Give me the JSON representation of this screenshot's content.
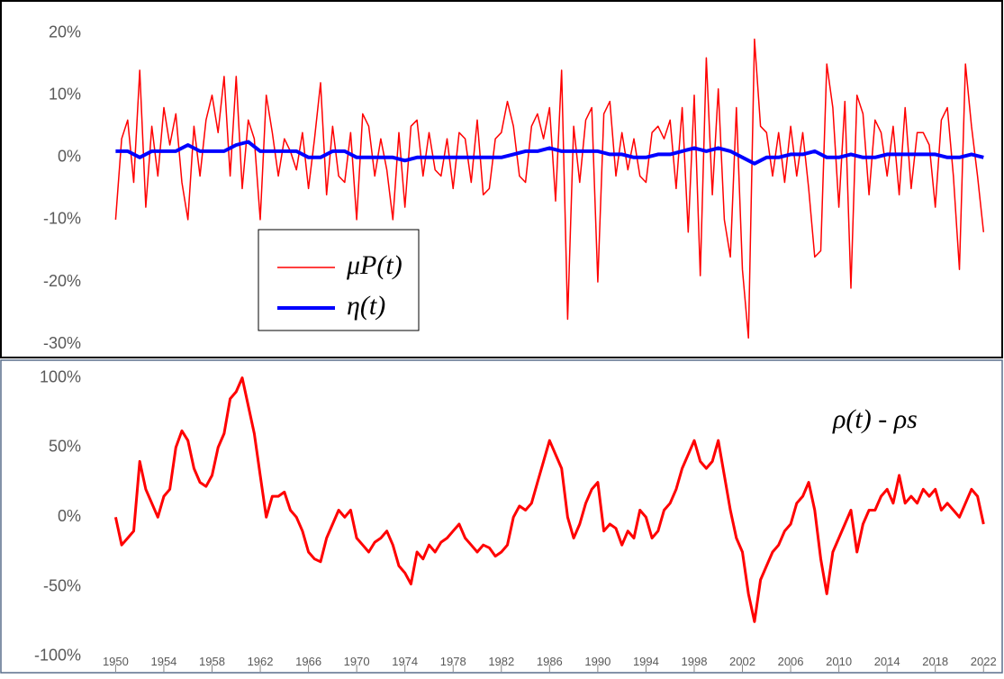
{
  "chart_data": [
    {
      "type": "line",
      "xlim": [
        1948.7,
        2023.4
      ],
      "ylim": [
        -32,
        25
      ],
      "yticks": [
        {
          "value": -30,
          "label": "-30%"
        },
        {
          "value": -20,
          "label": "-20%"
        },
        {
          "value": -10,
          "label": "-10%"
        },
        {
          "value": 0,
          "label": "0%"
        },
        {
          "value": 10,
          "label": "10%"
        },
        {
          "value": 20,
          "label": "20%"
        }
      ],
      "legend": "lower left",
      "series": [
        {
          "name": "μP(t)",
          "color": "#ff0000",
          "x": [
            1950,
            1950.5,
            1951,
            1951.5,
            1952,
            1952.5,
            1953,
            1953.5,
            1954,
            1954.5,
            1955,
            1955.5,
            1956,
            1956.5,
            1957,
            1957.5,
            1958,
            1958.5,
            1959,
            1959.5,
            1960,
            1960.5,
            1961,
            1961.5,
            1962,
            1962.5,
            1963,
            1963.5,
            1964,
            1964.5,
            1965,
            1965.5,
            1966,
            1966.5,
            1967,
            1967.5,
            1968,
            1968.5,
            1969,
            1969.5,
            1970,
            1970.5,
            1971,
            1971.5,
            1972,
            1972.5,
            1973,
            1973.5,
            1974,
            1974.5,
            1975,
            1975.5,
            1976,
            1976.5,
            1977,
            1977.5,
            1978,
            1978.5,
            1979,
            1979.5,
            1980,
            1980.5,
            1981,
            1981.5,
            1982,
            1982.5,
            1983,
            1983.5,
            1984,
            1984.5,
            1985,
            1985.5,
            1986,
            1986.5,
            1987,
            1987.5,
            1988,
            1988.5,
            1989,
            1989.5,
            1990,
            1990.5,
            1991,
            1991.5,
            1992,
            1992.5,
            1993,
            1993.5,
            1994,
            1994.5,
            1995,
            1995.5,
            1996,
            1996.5,
            1997,
            1997.5,
            1998,
            1998.5,
            1999,
            1999.5,
            2000,
            2000.5,
            2001,
            2001.5,
            2002,
            2002.5,
            2003,
            2003.5,
            2004,
            2004.5,
            2005,
            2005.5,
            2006,
            2006.5,
            2007,
            2007.5,
            2008,
            2008.5,
            2009,
            2009.5,
            2010,
            2010.5,
            2011,
            2011.5,
            2012,
            2012.5,
            2013,
            2013.5,
            2014,
            2014.5,
            2015,
            2015.5,
            2016,
            2016.5,
            2017,
            2017.5,
            2018,
            2018.5,
            2019,
            2019.5,
            2020,
            2020.5,
            2021,
            2021.5,
            2022
          ],
          "values": [
            -10,
            3,
            6,
            -4,
            14,
            -8,
            5,
            -3,
            8,
            2,
            7,
            -4,
            -10,
            5,
            -3,
            6,
            10,
            4,
            13,
            -3,
            13,
            -5,
            6,
            3,
            -10,
            10,
            4,
            -3,
            3,
            1,
            -2,
            4,
            -5,
            3,
            12,
            -6,
            5,
            -3,
            -4,
            4,
            -10,
            7,
            5,
            -3,
            3,
            -2,
            -10,
            4,
            -8,
            5,
            6,
            -3,
            4,
            -2,
            -3,
            3,
            -5,
            4,
            3,
            -4,
            6,
            -6,
            -5,
            3,
            4,
            9,
            5,
            -3,
            -4,
            5,
            7,
            3,
            8,
            -7,
            14,
            -26,
            5,
            -4,
            6,
            8,
            -20,
            7,
            9,
            -3,
            4,
            -2,
            3,
            -3,
            -4,
            4,
            5,
            3,
            6,
            -5,
            8,
            -12,
            10,
            -19,
            16,
            -6,
            11,
            -10,
            -16,
            8,
            -18,
            -29,
            19,
            5,
            4,
            -3,
            4,
            -4,
            5,
            -3,
            4,
            -5,
            -16,
            -15,
            15,
            8,
            -8,
            9,
            -21,
            10,
            7,
            -6,
            6,
            4,
            -3,
            5,
            -6,
            8,
            -5,
            4,
            4,
            2,
            -8,
            6,
            8,
            -3,
            -18,
            15,
            5,
            -3,
            -12
          ]
        },
        {
          "name": "η(t)",
          "color": "#0000ff",
          "x": [
            1950,
            1951,
            1952,
            1953,
            1954,
            1955,
            1956,
            1957,
            1958,
            1959,
            1960,
            1961,
            1962,
            1963,
            1964,
            1965,
            1966,
            1967,
            1968,
            1969,
            1970,
            1971,
            1972,
            1973,
            1974,
            1975,
            1976,
            1977,
            1978,
            1979,
            1980,
            1981,
            1982,
            1983,
            1984,
            1985,
            1986,
            1987,
            1988,
            1989,
            1990,
            1991,
            1992,
            1993,
            1994,
            1995,
            1996,
            1997,
            1998,
            1999,
            2000,
            2001,
            2002,
            2003,
            2004,
            2005,
            2006,
            2007,
            2008,
            2009,
            2010,
            2011,
            2012,
            2013,
            2014,
            2015,
            2016,
            2017,
            2018,
            2019,
            2020,
            2021,
            2022
          ],
          "values": [
            1,
            1,
            0,
            1,
            1,
            1,
            2,
            1,
            1,
            1,
            2,
            2.5,
            1,
            1,
            1,
            1,
            0,
            0,
            1,
            1,
            0,
            0,
            0,
            0,
            -0.5,
            0,
            0,
            0,
            0,
            0,
            0,
            0,
            0,
            0.5,
            1,
            1,
            1.5,
            1,
            1,
            1,
            1,
            0.5,
            0.5,
            0,
            0,
            0.5,
            0.5,
            1,
            1.5,
            1,
            1.5,
            1,
            0,
            -1,
            0,
            0,
            0.5,
            0.5,
            1,
            0,
            0,
            0.5,
            0,
            0,
            0.5,
            0.5,
            0.5,
            0.5,
            0.5,
            0,
            0,
            0.5,
            0
          ]
        }
      ]
    },
    {
      "type": "line",
      "xlim": [
        1948.7,
        2023.4
      ],
      "ylim": [
        -111,
        112
      ],
      "xticks": [
        1950,
        1954,
        1958,
        1962,
        1966,
        1970,
        1974,
        1978,
        1982,
        1986,
        1990,
        1994,
        1998,
        2002,
        2006,
        2010,
        2014,
        2018,
        2022
      ],
      "yticks": [
        {
          "value": -100,
          "label": "-100%"
        },
        {
          "value": -50,
          "label": "-50%"
        },
        {
          "value": 0,
          "label": "0%"
        },
        {
          "value": 50,
          "label": "50%"
        },
        {
          "value": 100,
          "label": "100%"
        }
      ],
      "annotation": "ρ(t) - ρs",
      "series": [
        {
          "color": "#ff0000",
          "x": [
            1950,
            1950.5,
            1951,
            1951.5,
            1952,
            1952.5,
            1953,
            1953.5,
            1954,
            1954.5,
            1955,
            1955.5,
            1956,
            1956.5,
            1957,
            1957.5,
            1958,
            1958.5,
            1959,
            1959.5,
            1960,
            1960.5,
            1961,
            1961.5,
            1962,
            1962.5,
            1963,
            1963.5,
            1964,
            1964.5,
            1965,
            1965.5,
            1966,
            1966.5,
            1967,
            1967.5,
            1968,
            1968.5,
            1969,
            1969.5,
            1970,
            1970.5,
            1971,
            1971.5,
            1972,
            1972.5,
            1973,
            1973.5,
            1974,
            1974.5,
            1975,
            1975.5,
            1976,
            1976.5,
            1977,
            1977.5,
            1978,
            1978.5,
            1979,
            1979.5,
            1980,
            1980.5,
            1981,
            1981.5,
            1982,
            1982.5,
            1983,
            1983.5,
            1984,
            1984.5,
            1985,
            1985.5,
            1986,
            1986.5,
            1987,
            1987.5,
            1988,
            1988.5,
            1989,
            1989.5,
            1990,
            1990.5,
            1991,
            1991.5,
            1992,
            1992.5,
            1993,
            1993.5,
            1994,
            1994.5,
            1995,
            1995.5,
            1996,
            1996.5,
            1997,
            1997.5,
            1998,
            1998.5,
            1999,
            1999.5,
            2000,
            2000.5,
            2001,
            2001.5,
            2002,
            2002.5,
            2003,
            2003.5,
            2004,
            2004.5,
            2005,
            2005.5,
            2006,
            2006.5,
            2007,
            2007.5,
            2008,
            2008.5,
            2009,
            2009.5,
            2010,
            2010.5,
            2011,
            2011.5,
            2012,
            2012.5,
            2013,
            2013.5,
            2014,
            2014.5,
            2015,
            2015.5,
            2016,
            2016.5,
            2017,
            2017.5,
            2018,
            2018.5,
            2019,
            2019.5,
            2020,
            2020.5,
            2021,
            2021.5,
            2022
          ],
          "values": [
            0,
            -20,
            -15,
            -10,
            40,
            20,
            10,
            0,
            15,
            20,
            50,
            62,
            55,
            35,
            25,
            22,
            30,
            50,
            60,
            85,
            90,
            100,
            80,
            60,
            30,
            0,
            15,
            15,
            18,
            5,
            0,
            -10,
            -25,
            -30,
            -32,
            -15,
            -5,
            5,
            0,
            5,
            -15,
            -20,
            -25,
            -18,
            -15,
            -10,
            -20,
            -35,
            -40,
            -48,
            -25,
            -30,
            -20,
            -25,
            -18,
            -15,
            -10,
            -5,
            -15,
            -20,
            -25,
            -20,
            -22,
            -28,
            -25,
            -20,
            0,
            8,
            5,
            10,
            25,
            40,
            55,
            45,
            35,
            0,
            -15,
            -5,
            10,
            20,
            25,
            -10,
            -5,
            -8,
            -20,
            -10,
            -15,
            5,
            0,
            -15,
            -10,
            5,
            10,
            20,
            35,
            45,
            55,
            40,
            35,
            40,
            55,
            30,
            5,
            -15,
            -25,
            -55,
            -75,
            -45,
            -35,
            -25,
            -20,
            -10,
            -5,
            10,
            15,
            25,
            5,
            -30,
            -55,
            -25,
            -15,
            -5,
            5,
            -25,
            -5,
            5,
            5,
            15,
            20,
            10,
            30,
            10,
            15,
            10,
            20,
            15,
            20,
            5,
            10,
            5,
            0,
            10,
            20,
            15,
            -5
          ]
        }
      ]
    }
  ]
}
